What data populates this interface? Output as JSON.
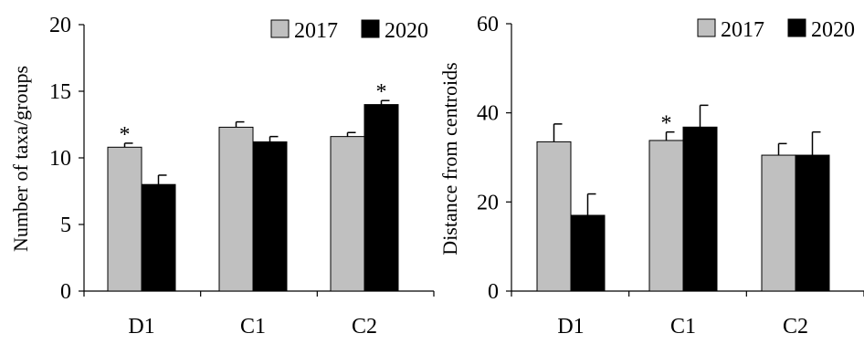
{
  "chart_data": [
    {
      "type": "bar",
      "ylabel": "Number of taxa/groups",
      "ylim": [
        0,
        20
      ],
      "yticks": [
        "0",
        "5",
        "10",
        "15",
        "20"
      ],
      "categories": [
        "D1",
        "C1",
        "C2"
      ],
      "legend": "top-right",
      "series": [
        {
          "name": "2017",
          "color": "#c0c0c0",
          "values": [
            10.8,
            12.3,
            11.6
          ],
          "errors": [
            0.3,
            0.4,
            0.3
          ]
        },
        {
          "name": "2020",
          "color": "#000000",
          "values": [
            8.0,
            11.2,
            14.0
          ],
          "errors": [
            0.7,
            0.4,
            0.3
          ]
        }
      ],
      "annotations": [
        {
          "text": "*",
          "category": "D1",
          "series": "2017"
        },
        {
          "text": "*",
          "category": "C2",
          "series": "2020"
        }
      ]
    },
    {
      "type": "bar",
      "ylabel": "Distance from centroids",
      "ylim": [
        0,
        60
      ],
      "yticks": [
        "0",
        "20",
        "40",
        "60"
      ],
      "categories": [
        "D1",
        "C1",
        "C2"
      ],
      "legend": "top-right",
      "series": [
        {
          "name": "2017",
          "color": "#c0c0c0",
          "values": [
            33.5,
            33.8,
            30.5
          ],
          "errors": [
            4.0,
            1.9,
            2.6
          ]
        },
        {
          "name": "2020",
          "color": "#000000",
          "values": [
            17.0,
            36.8,
            30.5
          ],
          "errors": [
            4.8,
            4.9,
            5.2
          ]
        }
      ],
      "annotations": [
        {
          "text": "*",
          "category": "C1",
          "series": "2017"
        }
      ]
    }
  ]
}
